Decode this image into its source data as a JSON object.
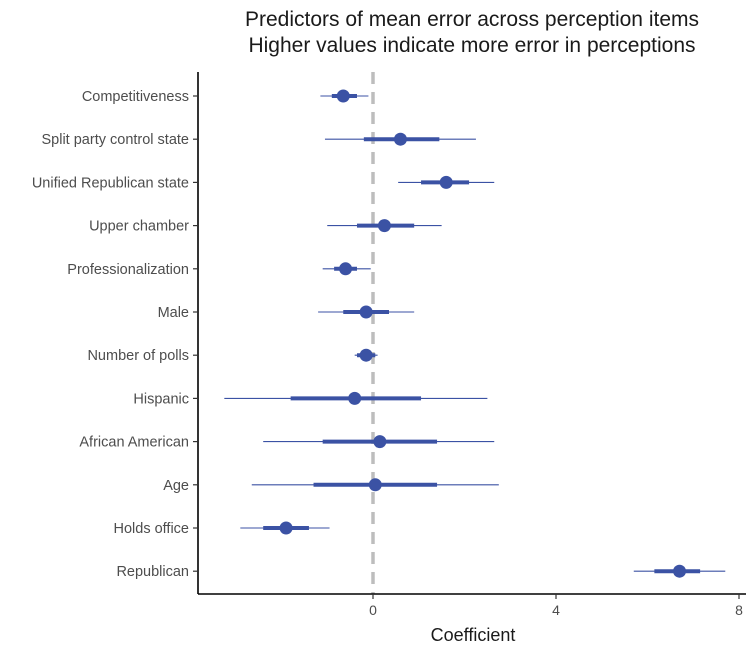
{
  "chart_data": {
    "type": "coefficient_plot",
    "title": "Predictors of mean error across perception items",
    "subtitle": "Higher values indicate more error in perceptions",
    "xlabel": "Coefficient",
    "ylabel": "",
    "xlim": [
      -3.8,
      8.2
    ],
    "xticks": [
      0,
      4,
      8
    ],
    "reference_line_x": 0,
    "grid": false,
    "colors": {
      "point": "#3b52a4",
      "reference": "#bdbdbd"
    },
    "predictors": [
      {
        "label": "Competitiveness",
        "estimate": -0.65,
        "ci_inner": [
          -0.9,
          -0.35
        ],
        "ci_outer": [
          -1.15,
          -0.1
        ]
      },
      {
        "label": "Split party control state",
        "estimate": 0.6,
        "ci_inner": [
          -0.2,
          1.45
        ],
        "ci_outer": [
          -1.05,
          2.25
        ]
      },
      {
        "label": "Unified Republican state",
        "estimate": 1.6,
        "ci_inner": [
          1.05,
          2.1
        ],
        "ci_outer": [
          0.55,
          2.65
        ]
      },
      {
        "label": "Upper chamber",
        "estimate": 0.25,
        "ci_inner": [
          -0.35,
          0.9
        ],
        "ci_outer": [
          -1.0,
          1.5
        ]
      },
      {
        "label": "Professionalization",
        "estimate": -0.6,
        "ci_inner": [
          -0.85,
          -0.35
        ],
        "ci_outer": [
          -1.1,
          -0.05
        ]
      },
      {
        "label": "Male",
        "estimate": -0.15,
        "ci_inner": [
          -0.65,
          0.35
        ],
        "ci_outer": [
          -1.2,
          0.9
        ]
      },
      {
        "label": "Number of polls",
        "estimate": -0.15,
        "ci_inner": [
          -0.35,
          0.05
        ],
        "ci_outer": [
          -0.4,
          0.1
        ]
      },
      {
        "label": "Hispanic",
        "estimate": -0.4,
        "ci_inner": [
          -1.8,
          1.05
        ],
        "ci_outer": [
          -3.25,
          2.5
        ]
      },
      {
        "label": "African American",
        "estimate": 0.15,
        "ci_inner": [
          -1.1,
          1.4
        ],
        "ci_outer": [
          -2.4,
          2.65
        ]
      },
      {
        "label": "Age",
        "estimate": 0.05,
        "ci_inner": [
          -1.3,
          1.4
        ],
        "ci_outer": [
          -2.65,
          2.75
        ]
      },
      {
        "label": "Holds office",
        "estimate": -1.9,
        "ci_inner": [
          -2.4,
          -1.4
        ],
        "ci_outer": [
          -2.9,
          -0.95
        ]
      },
      {
        "label": "Republican",
        "estimate": 6.7,
        "ci_inner": [
          6.15,
          7.15
        ],
        "ci_outer": [
          5.7,
          7.7
        ]
      }
    ]
  }
}
